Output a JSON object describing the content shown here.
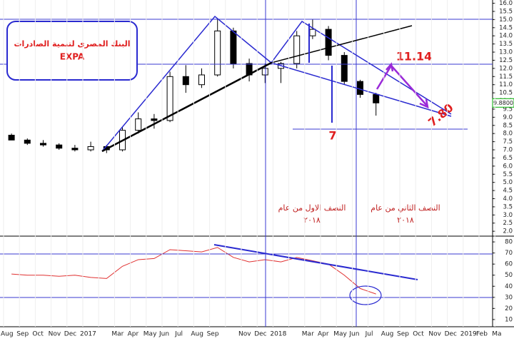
{
  "chart_data": [
    {
      "type": "candlestick",
      "title": "البنك المصرى لتنمية الصادرات",
      "subtitle": "EXPA",
      "annotations": [
        "11.14",
        "7.80",
        "7"
      ],
      "half_labels": [
        [
          "النصف الاول من عام",
          "٢٠١٨"
        ],
        [
          "النصف الثاني من عام",
          "٢٠١٨"
        ]
      ],
      "last_price": {
        "value": 9.88,
        "label": "9.8800"
      },
      "color": "#000000",
      "open": [
        7.9,
        7.6,
        7.4,
        7.3,
        7.1,
        7.0,
        7.2,
        7.0,
        8.2,
        8.9,
        8.8,
        11.5,
        11.0,
        11.6,
        14.3,
        12.3,
        11.6,
        12.0,
        12.3,
        14.0,
        14.4,
        12.8,
        11.2,
        10.4,
        null,
        null,
        null,
        null,
        null,
        null,
        null,
        null
      ],
      "high": [
        8.0,
        7.7,
        7.6,
        7.4,
        7.3,
        7.5,
        7.3,
        8.4,
        9.3,
        9.2,
        11.8,
        12.2,
        12.0,
        15.0,
        14.5,
        12.6,
        12.3,
        12.4,
        14.3,
        15.0,
        14.6,
        13.0,
        11.3,
        10.5,
        null,
        null,
        null,
        null,
        null,
        null,
        null,
        null
      ],
      "low": [
        7.6,
        7.3,
        7.2,
        7.0,
        6.9,
        6.9,
        6.8,
        6.9,
        8.0,
        8.3,
        8.7,
        10.5,
        10.8,
        11.5,
        12.0,
        11.2,
        11.1,
        11.1,
        12.0,
        13.8,
        12.5,
        11.0,
        10.2,
        9.1,
        null,
        null,
        null,
        null,
        null,
        null,
        null,
        null
      ],
      "close": [
        7.6,
        7.4,
        7.3,
        7.1,
        7.0,
        7.2,
        7.0,
        8.2,
        8.9,
        8.8,
        11.5,
        11.0,
        11.6,
        14.3,
        12.3,
        11.6,
        12.0,
        12.3,
        14.0,
        14.4,
        12.8,
        11.2,
        10.4,
        9.88,
        null,
        null,
        null,
        null,
        null,
        null,
        null,
        null
      ],
      "ylim": [
        1.7,
        16.2
      ],
      "yticks": [
        {
          "value": 2,
          "label": "2.0"
        },
        2.5,
        {
          "value": 3,
          "label": "3.0"
        },
        3.5,
        {
          "value": 4,
          "label": "4.0"
        },
        4.5,
        {
          "value": 5,
          "label": "5.0"
        },
        5.5,
        {
          "value": 6,
          "label": "6.0"
        },
        6.5,
        {
          "value": 7,
          "label": "7.0"
        },
        7.5,
        {
          "value": 8,
          "label": "8.0"
        },
        8.5,
        {
          "value": 9,
          "label": "9.0"
        },
        9.5,
        {
          "value": 10,
          "label": "10.0"
        },
        10.5,
        {
          "value": 11,
          "label": "11.0"
        },
        11.5,
        {
          "value": 12,
          "label": "12.0"
        },
        12.5,
        {
          "value": 13,
          "label": "13.0"
        },
        13.5,
        {
          "value": 14,
          "label": "14.0"
        },
        14.5,
        {
          "value": 15,
          "label": "15.0"
        },
        15.5,
        {
          "value": 16,
          "label": "16.0"
        }
      ]
    },
    {
      "type": "line",
      "categories": [
        "Aug",
        "Sep",
        "Oct",
        "Nov",
        "Dec",
        "2017",
        null,
        "Mar",
        "Apr",
        "May",
        "Jun",
        "Jul",
        "Aug",
        "Sep",
        null,
        "Nov",
        "Dec",
        "2018",
        null,
        "Mar",
        "Apr",
        "May",
        "Jun",
        "Jul",
        "Aug",
        "Sep",
        "Oct",
        "Nov",
        "Dec",
        "2019",
        "Feb",
        "Ma"
      ],
      "color": "#e03030",
      "values": [
        51,
        50,
        50,
        49,
        50,
        48,
        47,
        58,
        64,
        65,
        73,
        72,
        71,
        75,
        66,
        62,
        64,
        62,
        66,
        63,
        60,
        50,
        38,
        33,
        null,
        null,
        null,
        null,
        null,
        null,
        null,
        null
      ],
      "ylim": [
        3.5,
        85.2
      ],
      "yticks": [
        10,
        20,
        30,
        40,
        50,
        60,
        70,
        80
      ]
    }
  ]
}
